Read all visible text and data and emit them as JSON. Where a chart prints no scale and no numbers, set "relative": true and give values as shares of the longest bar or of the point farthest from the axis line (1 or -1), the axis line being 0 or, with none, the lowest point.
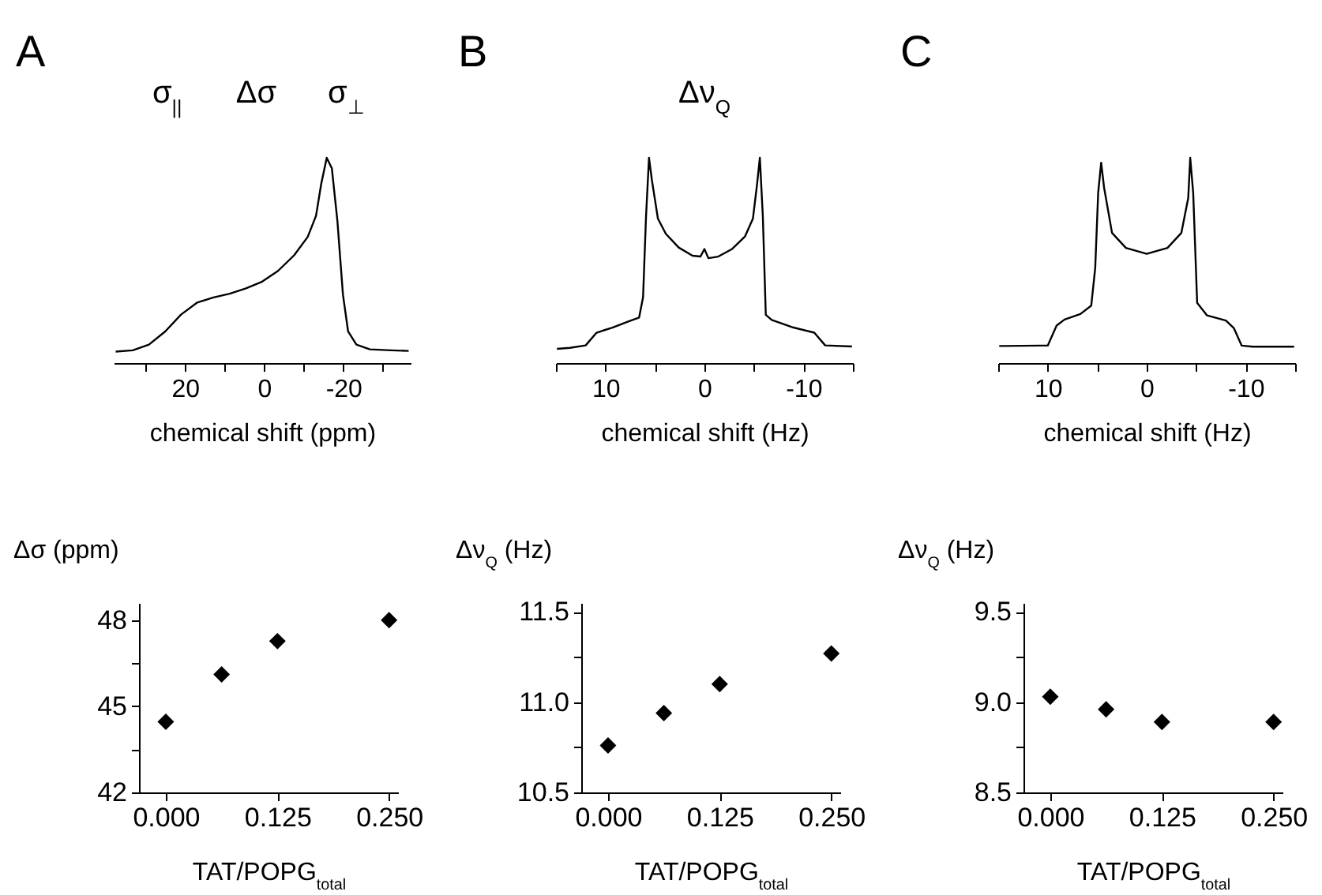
{
  "chart_data": [
    {
      "type": "line",
      "title": "A",
      "xlabel": "chemical shift (ppm)",
      "relative": true,
      "color": "#000000",
      "annotations": [
        "σ$_{||}$",
        "Δσ",
        "σ$_{⊥}$"
      ],
      "xlim": [
        38,
        -37
      ],
      "xticks": [
        {
          "value": 30,
          "label": null
        },
        20,
        {
          "value": 10,
          "label": null
        },
        0,
        {
          "value": -10,
          "label": null
        },
        -20,
        {
          "value": -30,
          "label": null
        }
      ],
      "x": [
        37.5,
        33.2,
        29.1,
        25.0,
        21.0,
        16.9,
        12.8,
        8.7,
        4.6,
        0.5,
        -3.5,
        -7.6,
        -11.0,
        -13.1,
        -14.4,
        -15.8,
        -17.1,
        -18.5,
        -19.9,
        -21.2,
        -23.3,
        -26.7,
        -32.1,
        -36.5
      ],
      "values": [
        0.056,
        0.062,
        0.09,
        0.154,
        0.236,
        0.295,
        0.32,
        0.338,
        0.364,
        0.397,
        0.449,
        0.526,
        0.615,
        0.718,
        0.872,
        1.0,
        0.949,
        0.692,
        0.333,
        0.154,
        0.09,
        0.067,
        0.062,
        0.059
      ]
    },
    {
      "type": "line",
      "title": "B",
      "xlabel": "chemical shift (Hz)",
      "relative": true,
      "color": "#000000",
      "annotations": [
        "Δν$_{Q}$"
      ],
      "xlim": [
        15,
        -15
      ],
      "xticks": [
        {
          "value": 15,
          "label": null
        },
        10,
        {
          "value": 5,
          "label": null
        },
        0,
        {
          "value": -5,
          "label": null
        },
        -10,
        {
          "value": -15,
          "label": null
        }
      ],
      "x": [
        14.9,
        13.6,
        12.0,
        10.9,
        9.3,
        7.7,
        6.6,
        6.2,
        5.9,
        5.6,
        5.3,
        4.7,
        3.9,
        2.6,
        1.2,
        0.4,
        0,
        -0.4,
        -1.4,
        -2.8,
        -4.1,
        -4.9,
        -5.3,
        -5.6,
        -5.9,
        -6.2,
        -6.8,
        -9.0,
        -11.1,
        -12.2,
        -14.9
      ],
      "values": [
        0.069,
        0.074,
        0.086,
        0.148,
        0.173,
        0.202,
        0.222,
        0.321,
        0.716,
        1.0,
        0.889,
        0.704,
        0.63,
        0.563,
        0.523,
        0.519,
        0.556,
        0.511,
        0.519,
        0.556,
        0.617,
        0.704,
        0.864,
        1.0,
        0.716,
        0.235,
        0.21,
        0.173,
        0.148,
        0.086,
        0.081
      ]
    },
    {
      "type": "line",
      "title": "C",
      "xlabel": "chemical shift (Hz)",
      "relative": true,
      "color": "#000000",
      "xlim": [
        15,
        -15
      ],
      "xticks": [
        {
          "value": 15,
          "label": null
        },
        10,
        {
          "value": 5,
          "label": null
        },
        0,
        {
          "value": -5,
          "label": null
        },
        -10,
        {
          "value": -15,
          "label": null
        }
      ],
      "x": [
        14.9,
        10.7,
        10.0,
        9.1,
        8.3,
        6.7,
        5.6,
        5.2,
        4.9,
        4.6,
        4.3,
        3.5,
        2.1,
        0,
        -2.1,
        -3.5,
        -4.2,
        -4.4,
        -4.7,
        -5.1,
        -6.1,
        -8.0,
        -8.8,
        -9.6,
        -10.7,
        -14.9
      ],
      "values": [
        0.083,
        0.085,
        0.085,
        0.183,
        0.212,
        0.239,
        0.28,
        0.463,
        0.829,
        0.976,
        0.854,
        0.634,
        0.561,
        0.532,
        0.561,
        0.634,
        0.805,
        1.0,
        0.829,
        0.293,
        0.232,
        0.207,
        0.171,
        0.085,
        0.08,
        0.08
      ]
    },
    {
      "type": "scatter",
      "xlabel": "TAT/POPG$_{total}$",
      "ylabel": "Δσ (ppm)",
      "marker": "diamond",
      "color": "#000000",
      "xlim": [
        -0.03,
        0.26
      ],
      "xticks": [
        {
          "value": 0,
          "label": "0.000"
        },
        0.125,
        {
          "value": 0.25,
          "label": "0.250"
        }
      ],
      "ylim": [
        42,
        48.6
      ],
      "yticks": [
        42,
        {
          "value": 43.5,
          "label": null
        },
        45,
        {
          "value": 46.5,
          "label": null
        },
        48
      ],
      "x": [
        0,
        0.0625,
        0.125,
        0.25
      ],
      "values": [
        44.46,
        46.11,
        47.27,
        48.0
      ]
    },
    {
      "type": "scatter",
      "xlabel": "TAT/POPG$_{total}$",
      "ylabel": "Δν$_{Q}$ (Hz)",
      "marker": "diamond",
      "color": "#000000",
      "xlim": [
        -0.03,
        0.26
      ],
      "xticks": [
        {
          "value": 0,
          "label": "0.000"
        },
        0.125,
        {
          "value": 0.25,
          "label": "0.250"
        }
      ],
      "ylim": [
        10.5,
        11.55
      ],
      "yticks": [
        10.5,
        {
          "value": 10.75,
          "label": null
        },
        {
          "value": 11,
          "label": "11.0"
        },
        {
          "value": 11.25,
          "label": null
        },
        11.5
      ],
      "x": [
        0,
        0.0625,
        0.125,
        0.25
      ],
      "values": [
        10.76,
        10.94,
        11.1,
        11.27
      ]
    },
    {
      "type": "scatter",
      "xlabel": "TAT/POPG$_{total}$",
      "ylabel": "Δν$_{Q}$ (Hz)",
      "marker": "diamond",
      "color": "#000000",
      "xlim": [
        -0.03,
        0.26
      ],
      "xticks": [
        {
          "value": 0,
          "label": "0.000"
        },
        0.125,
        {
          "value": 0.25,
          "label": "0.250"
        }
      ],
      "ylim": [
        8.5,
        9.55
      ],
      "yticks": [
        8.5,
        {
          "value": 8.75,
          "label": null
        },
        {
          "value": 9,
          "label": "9.0"
        },
        {
          "value": 9.25,
          "label": null
        },
        9.5
      ],
      "x": [
        0,
        0.0625,
        0.125,
        0.25
      ],
      "values": [
        9.03,
        8.96,
        8.89,
        8.89
      ]
    }
  ]
}
